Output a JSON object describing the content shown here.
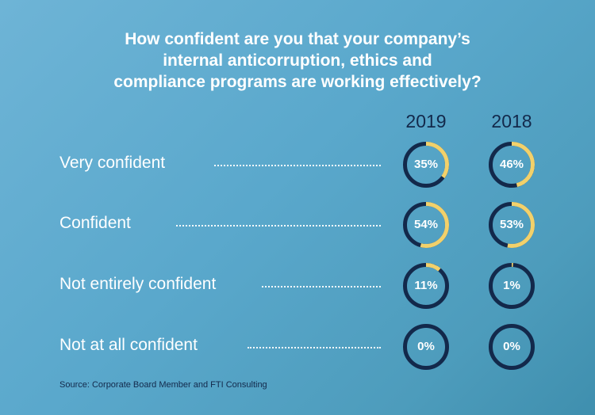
{
  "title_lines": [
    "How confident are you that your company’s",
    "internal anticorruption, ethics and",
    "compliance programs are working effectively?"
  ],
  "colors": {
    "ring_track": "#13294b",
    "ring_fill": "#f2d16b"
  },
  "chart_data": {
    "type": "donut-grid",
    "title": "How confident are you that your company’s internal anticorruption, ethics and compliance programs are working effectively?",
    "series": [
      {
        "name": "2019",
        "values": [
          35,
          54,
          11,
          0
        ],
        "labels": [
          "35%",
          "54%",
          "11%",
          "0%"
        ]
      },
      {
        "name": "2018",
        "values": [
          46,
          53,
          1,
          0
        ],
        "labels": [
          "46%",
          "53%",
          "1%",
          "0%"
        ]
      }
    ],
    "categories": [
      "Very confident",
      "Confident",
      "Not entirely confident",
      "Not at all confident"
    ],
    "unit": "%"
  },
  "source": "Source: Corporate Board Member and FTI Consulting"
}
